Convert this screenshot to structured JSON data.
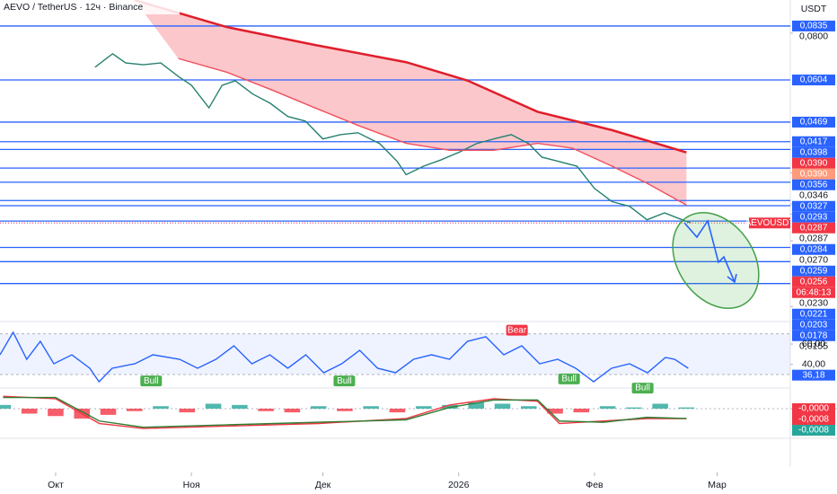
{
  "header": {
    "title": "AEVO / TetherUS · 12ч · Binance",
    "currency": "USDT"
  },
  "chart_data": [
    {
      "type": "line",
      "log_scale": true,
      "xlim": [
        -12.7,
        167.7
      ],
      "xticks": [
        {
          "value": 0,
          "label": "Окт"
        },
        {
          "value": 31,
          "label": "Ноя"
        },
        {
          "value": 61,
          "label": "Дек"
        },
        {
          "value": 92,
          "label": "2026"
        },
        {
          "value": 123,
          "label": "Фев"
        },
        {
          "value": 151,
          "label": "Мар"
        }
      ],
      "ylim": [
        0.0144,
        0.0976
      ],
      "yticks": [
        {
          "value": 0.08,
          "label": "0,0800"
        },
        {
          "value": 0.0346,
          "label": "0,0346"
        },
        {
          "value": 0.0287,
          "label": "0,0287"
        },
        {
          "value": 0.027,
          "label": "0,0270"
        },
        {
          "value": 0.023,
          "label": "0,0230"
        },
        {
          "value": 0.0155,
          "label": "0,0155"
        }
      ],
      "series": [
        {
          "color": "#26806f",
          "x": [
            9,
            13,
            16,
            20,
            24,
            28,
            31,
            35,
            38,
            41,
            45,
            49,
            53,
            57,
            61,
            65,
            69,
            74,
            78,
            80,
            84,
            88,
            92,
            96,
            100,
            104,
            108,
            111,
            115,
            119,
            123,
            127,
            131,
            135,
            139,
            143,
            145
          ],
          "values": [
            0.0652,
            0.0707,
            0.0669,
            0.0662,
            0.0669,
            0.0617,
            0.0585,
            0.0511,
            0.0585,
            0.0601,
            0.0555,
            0.0525,
            0.0485,
            0.0472,
            0.0424,
            0.0435,
            0.044,
            0.0412,
            0.037,
            0.0342,
            0.036,
            0.0374,
            0.0391,
            0.0412,
            0.0424,
            0.0435,
            0.0412,
            0.038,
            0.037,
            0.036,
            0.0315,
            0.0291,
            0.0283,
            0.0261,
            0.0272,
            0.0261,
            0.0256
          ]
        },
        {
          "color": "#e01e2b",
          "x": [
            18,
            39,
            59,
            80,
            94,
            110,
            127,
            144
          ],
          "values": [
            0.0976,
            0.083,
            0.0746,
            0.0672,
            0.0602,
            0.0499,
            0.0447,
            0.0391
          ]
        },
        {
          "color": "#f0505c",
          "x": [
            28,
            39,
            49,
            59,
            69,
            80,
            90,
            100,
            110,
            118,
            127,
            135,
            144
          ],
          "values": [
            0.0687,
            0.0633,
            0.0571,
            0.0512,
            0.046,
            0.0413,
            0.0396,
            0.0396,
            0.0413,
            0.0401,
            0.036,
            0.0325,
            0.0285
          ]
        }
      ],
      "level_color": "#2962ff",
      "levels": [
        {
          "value": 0.0835,
          "label": "0,0835"
        },
        {
          "value": 0.0604,
          "label": "0,0604"
        },
        {
          "value": 0.0469,
          "label": "0,0469"
        },
        {
          "value": 0.0417,
          "label": "0,0417"
        },
        {
          "value": 0.0398,
          "label": "0,0398"
        },
        {
          "value": 0.0356,
          "label": "0,0356"
        },
        {
          "value": 0.0327,
          "label": "0,0327"
        },
        {
          "value": 0.0293,
          "label": "0,0293"
        },
        {
          "value": 0.0284,
          "label": "0,0284"
        },
        {
          "value": 0.0259,
          "label": "0,0259"
        },
        {
          "value": 0.0221,
          "label": "0,0221"
        },
        {
          "value": 0.0203,
          "label": "0,0203"
        },
        {
          "value": 0.0178,
          "label": "0,0178"
        }
      ],
      "markers": [
        {
          "value": 0.039,
          "label": "0,0390",
          "color": "#f23645"
        },
        {
          "value": 0.039,
          "label": "0,0390",
          "color": "#ff9a7a"
        },
        {
          "value": 0.0287,
          "label": "0,0287",
          "color": "#f23645"
        }
      ],
      "last_price": {
        "symbol": "AEVOUSDT",
        "value": 0.0256,
        "label": "0,0256",
        "countdown": "06:48:13",
        "color": "#f23645"
      }
    },
    {
      "type": "line",
      "xlim": [
        -12.7,
        167.7
      ],
      "ylim": [
        16.8,
        78.5
      ],
      "yticks": [
        {
          "value": 60,
          "label": "60,00"
        },
        {
          "value": 40,
          "label": "40,00"
        }
      ],
      "band": [
        30,
        70
      ],
      "x": [
        -12.7,
        -9.7,
        -6.6,
        -3.5,
        -0.4,
        3.7,
        7.8,
        9.9,
        12.9,
        18.1,
        22.2,
        28.3,
        32.4,
        36.6,
        40.7,
        44.8,
        48.9,
        53,
        57.1,
        61.2,
        65.3,
        69.4,
        73.5,
        77.6,
        81.7,
        85.8,
        89.9,
        94,
        98.2,
        102.3,
        106.4,
        110.5,
        114.6,
        118.7,
        122.8,
        126.9,
        131,
        135.1,
        139.2,
        141.3,
        144.4
      ],
      "series": [
        {
          "color": "#2962ff",
          "values": [
            49.4,
            71.5,
            45,
            62.6,
            40.6,
            49.4,
            36.2,
            23,
            36.2,
            40.6,
            49.4,
            45,
            36.2,
            45,
            58.2,
            40.6,
            49.4,
            36.2,
            49.4,
            31.8,
            40.6,
            53.8,
            36.2,
            31.8,
            45,
            49.4,
            45,
            62.6,
            67.1,
            49.4,
            58.2,
            40.6,
            45,
            36.2,
            23,
            36.2,
            40.6,
            31.8,
            46.8,
            45,
            36.18
          ]
        }
      ],
      "last_label": {
        "value": 36.18,
        "label": "36,18",
        "color": "#2962ff"
      },
      "annotations": [
        {
          "x": 21.8,
          "y": 29,
          "text": "Bull",
          "color": "#4caf50"
        },
        {
          "x": 65.9,
          "y": 29,
          "text": "Bull",
          "color": "#4caf50"
        },
        {
          "x": 105.3,
          "y": 70,
          "text": "Bear",
          "color": "#f23645"
        },
        {
          "x": 117.2,
          "y": 31,
          "text": "Bull",
          "color": "#4caf50"
        },
        {
          "x": 134,
          "y": 22,
          "text": "Bull",
          "color": "#4caf50"
        }
      ]
    },
    {
      "type": "bar",
      "xlim": [
        -12.7,
        167.7
      ],
      "ylim": [
        -0.00218,
        0.00167
      ],
      "x": [
        -12,
        -6,
        0,
        6,
        12,
        18,
        24,
        30,
        36,
        42,
        48,
        54,
        60,
        66,
        72,
        78,
        84,
        90,
        96,
        102,
        108,
        114,
        120,
        126,
        132,
        138,
        144
      ],
      "values": [
        0.0003,
        -0.0004,
        -0.0006,
        -0.0008,
        -0.0005,
        -0.0002,
        0.0002,
        -0.0003,
        0.0004,
        0.0003,
        -0.0002,
        -0.0003,
        0.0002,
        -0.0002,
        0.0002,
        -0.0003,
        0.0002,
        0.0003,
        0.0005,
        0.0004,
        0.0002,
        -0.0004,
        -0.0003,
        0.0002,
        0.0001,
        0.0004,
        0.0001
      ],
      "up_color": "#26a69a",
      "down_color": "#f23645",
      "series": [
        {
          "color": "#f23645",
          "x": [
            -12,
            0,
            10,
            20,
            40,
            60,
            80,
            90,
            100,
            110,
            115,
            125,
            135,
            144
          ],
          "values": [
            0.001,
            0.0008,
            -0.0012,
            -0.0016,
            -0.0014,
            -0.0012,
            -0.0008,
            0.0003,
            0.0008,
            0.0006,
            -0.0012,
            -0.001,
            -0.0008,
            -0.0008
          ]
        },
        {
          "color": "#2e7d32",
          "x": [
            -12,
            0,
            10,
            20,
            40,
            60,
            80,
            90,
            100,
            110,
            115,
            125,
            135,
            144
          ],
          "values": [
            0.0009,
            0.0009,
            -0.001,
            -0.0015,
            -0.0013,
            -0.0011,
            -0.0009,
            0.0001,
            0.0007,
            0.0007,
            -0.001,
            -0.0011,
            -0.0007,
            -0.0008
          ]
        }
      ],
      "badges": [
        {
          "value": 0,
          "label": "-0,0000",
          "color": "#f23645"
        },
        {
          "value": -0.0008,
          "label": "-0,0008",
          "color": "#f23645"
        },
        {
          "value": -0.0008,
          "label": "-0,0008",
          "color": "#26a69a"
        }
      ]
    }
  ]
}
